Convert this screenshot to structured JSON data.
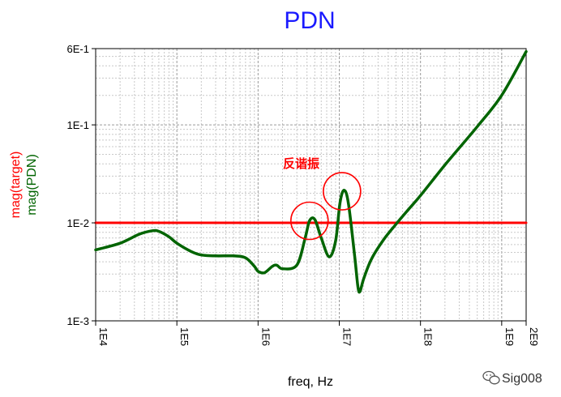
{
  "colors": {
    "title": "#1a1aff",
    "target": "#ff0000",
    "pdn": "#006400",
    "circle": "#ff0000",
    "grid": "#c8c8c8",
    "axis": "#000000"
  },
  "chart_data": {
    "type": "line",
    "title": "PDN",
    "xlabel": "freq, Hz",
    "ylabels": [
      "mag(target)",
      "mag(PDN)"
    ],
    "xscale": "log",
    "yscale": "log",
    "xlim": [
      10000,
      2000000000
    ],
    "ylim": [
      0.001,
      0.6
    ],
    "x_ticks": [
      {
        "value": 10000,
        "label": "1E4"
      },
      {
        "value": 100000,
        "label": "1E5"
      },
      {
        "value": 1000000,
        "label": "1E6"
      },
      {
        "value": 10000000,
        "label": "1E7"
      },
      {
        "value": 100000000,
        "label": "1E8"
      },
      {
        "value": 1000000000,
        "label": "1E9"
      },
      {
        "value": 2000000000,
        "label": "2E9"
      }
    ],
    "y_ticks": [
      {
        "value": 0.001,
        "label": "1E-3"
      },
      {
        "value": 0.01,
        "label": "1E-2"
      },
      {
        "value": 0.1,
        "label": "1E-1"
      },
      {
        "value": 0.6,
        "label": "6E-1"
      }
    ],
    "grid": true,
    "series": [
      {
        "name": "mag(target)",
        "color": "#ff0000",
        "x": [
          10000,
          2000000000
        ],
        "y": [
          0.01,
          0.01
        ]
      },
      {
        "name": "mag(PDN)",
        "color": "#006400",
        "x": [
          10000,
          20000,
          35000,
          50000,
          60000,
          80000,
          100000,
          150000,
          200000,
          300000,
          500000,
          700000,
          900000,
          1000000,
          1200000,
          1500000,
          1700000,
          2000000,
          3000000,
          3800000,
          4300000,
          5000000,
          6000000,
          7500000,
          9000000,
          10200000,
          11500000,
          13000000,
          15500000,
          17000000,
          18000000,
          20000000,
          25000000,
          35000000,
          50000000,
          70000000,
          100000000,
          200000000,
          500000000,
          1000000000,
          2000000000
        ],
        "y": [
          0.0053,
          0.0062,
          0.0077,
          0.0083,
          0.0082,
          0.0072,
          0.0062,
          0.0051,
          0.0047,
          0.0046,
          0.0046,
          0.0044,
          0.0036,
          0.0032,
          0.0031,
          0.0036,
          0.0037,
          0.0034,
          0.0037,
          0.007,
          0.0105,
          0.0108,
          0.007,
          0.0045,
          0.0065,
          0.016,
          0.0215,
          0.0155,
          0.0045,
          0.0022,
          0.002,
          0.0027,
          0.0043,
          0.0067,
          0.0097,
          0.0135,
          0.019,
          0.039,
          0.096,
          0.2,
          0.56
        ]
      }
    ],
    "annotations": [
      {
        "text": "反谐振",
        "color": "#ff0000"
      }
    ],
    "circles": [
      {
        "x": 4300000,
        "y": 0.0105
      },
      {
        "x": 10800000,
        "y": 0.021
      }
    ]
  },
  "watermark": {
    "text": "Sig008"
  }
}
